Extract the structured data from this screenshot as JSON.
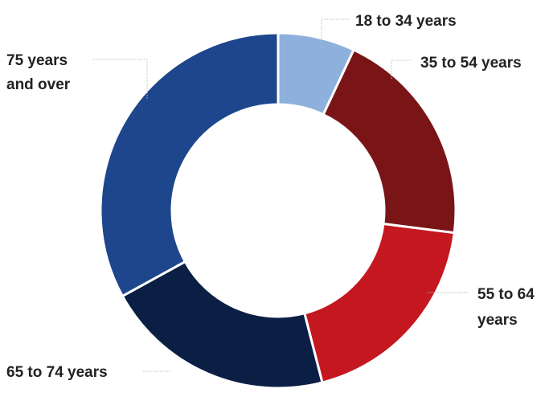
{
  "chart_data": {
    "type": "pie",
    "donut": true,
    "categories": [
      "18 to 34 years",
      "35 to 54 years",
      "55 to 64 years",
      "65 to 74 years",
      "75 years and over"
    ],
    "values": [
      7,
      20,
      19,
      21,
      33
    ],
    "colors": [
      "#8eb0dc",
      "#7a1517",
      "#c4171f",
      "#0b1f45",
      "#1d468c"
    ],
    "labels": {
      "seg0": [
        "18 to 34 years"
      ],
      "seg1": [
        "35 to 54 years"
      ],
      "seg2": [
        "55 to 64",
        "years"
      ],
      "seg3": [
        "65 to 74 years"
      ],
      "seg4": [
        "75 years",
        "and over"
      ]
    },
    "legend": "none"
  }
}
